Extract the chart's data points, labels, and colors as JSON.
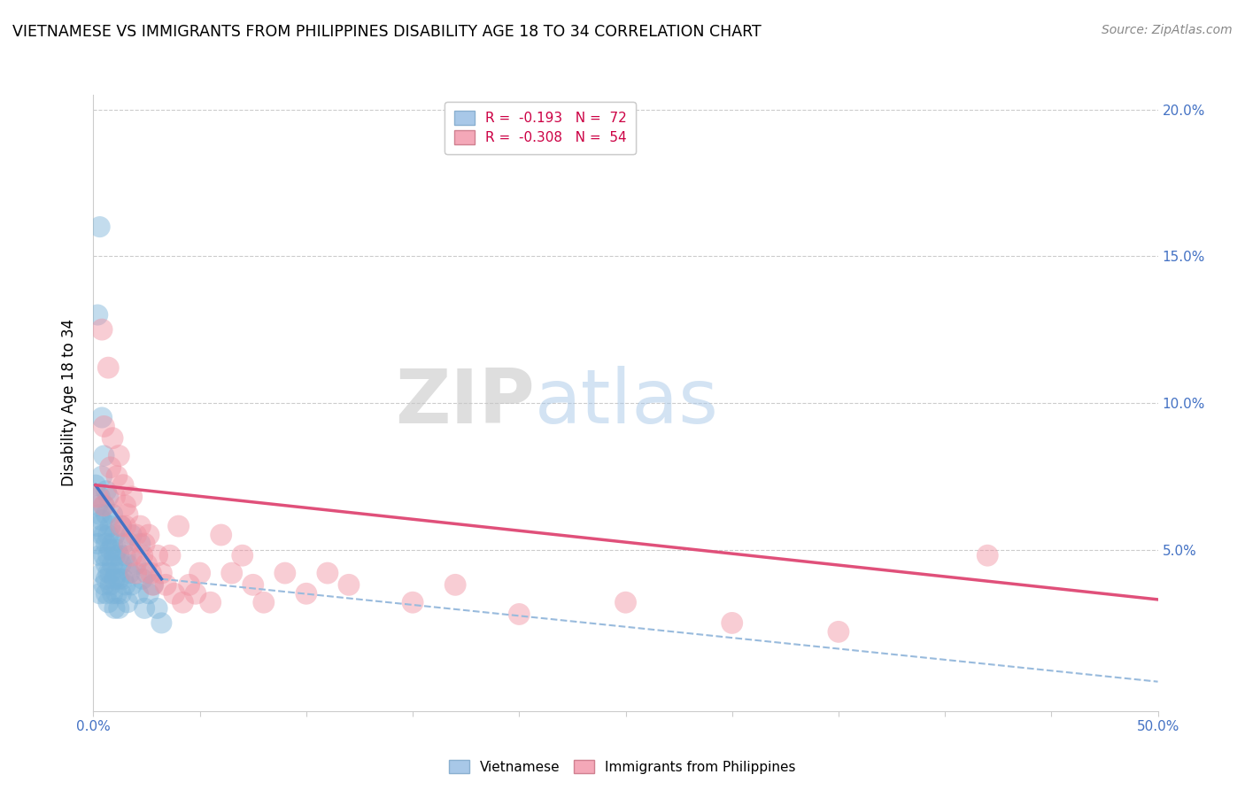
{
  "title": "VIETNAMESE VS IMMIGRANTS FROM PHILIPPINES DISABILITY AGE 18 TO 34 CORRELATION CHART",
  "source": "Source: ZipAtlas.com",
  "ylabel": "Disability Age 18 to 34",
  "xmin": 0.0,
  "xmax": 0.5,
  "ymin": -0.005,
  "ymax": 0.205,
  "yticks": [
    0.05,
    0.1,
    0.15,
    0.2
  ],
  "ytick_labels": [
    "5.0%",
    "10.0%",
    "15.0%",
    "20.0%"
  ],
  "viet_color": "#7ab3d9",
  "phil_color": "#f090a0",
  "watermark_text": "ZIPatlas",
  "viet_trend_color": "#4472c4",
  "phil_trend_color": "#e0507a",
  "dash_color": "#99bbdd",
  "viet_points": [
    [
      0.001,
      0.072
    ],
    [
      0.002,
      0.065
    ],
    [
      0.002,
      0.058
    ],
    [
      0.002,
      0.052
    ],
    [
      0.003,
      0.068
    ],
    [
      0.003,
      0.062
    ],
    [
      0.003,
      0.048
    ],
    [
      0.003,
      0.035
    ],
    [
      0.004,
      0.075
    ],
    [
      0.004,
      0.06
    ],
    [
      0.004,
      0.055
    ],
    [
      0.004,
      0.042
    ],
    [
      0.005,
      0.082
    ],
    [
      0.005,
      0.065
    ],
    [
      0.005,
      0.055
    ],
    [
      0.005,
      0.048
    ],
    [
      0.005,
      0.038
    ],
    [
      0.006,
      0.07
    ],
    [
      0.006,
      0.062
    ],
    [
      0.006,
      0.052
    ],
    [
      0.006,
      0.045
    ],
    [
      0.006,
      0.04
    ],
    [
      0.006,
      0.035
    ],
    [
      0.007,
      0.068
    ],
    [
      0.007,
      0.055
    ],
    [
      0.007,
      0.048
    ],
    [
      0.007,
      0.042
    ],
    [
      0.007,
      0.032
    ],
    [
      0.008,
      0.058
    ],
    [
      0.008,
      0.05
    ],
    [
      0.008,
      0.042
    ],
    [
      0.008,
      0.038
    ],
    [
      0.009,
      0.062
    ],
    [
      0.009,
      0.052
    ],
    [
      0.009,
      0.045
    ],
    [
      0.009,
      0.035
    ],
    [
      0.01,
      0.055
    ],
    [
      0.01,
      0.048
    ],
    [
      0.01,
      0.04
    ],
    [
      0.01,
      0.03
    ],
    [
      0.011,
      0.05
    ],
    [
      0.011,
      0.042
    ],
    [
      0.011,
      0.035
    ],
    [
      0.012,
      0.048
    ],
    [
      0.012,
      0.04
    ],
    [
      0.012,
      0.03
    ],
    [
      0.013,
      0.058
    ],
    [
      0.013,
      0.045
    ],
    [
      0.013,
      0.035
    ],
    [
      0.014,
      0.052
    ],
    [
      0.014,
      0.04
    ],
    [
      0.015,
      0.048
    ],
    [
      0.015,
      0.038
    ],
    [
      0.016,
      0.045
    ],
    [
      0.016,
      0.032
    ],
    [
      0.017,
      0.042
    ],
    [
      0.018,
      0.055
    ],
    [
      0.018,
      0.038
    ],
    [
      0.02,
      0.045
    ],
    [
      0.021,
      0.035
    ],
    [
      0.022,
      0.052
    ],
    [
      0.023,
      0.04
    ],
    [
      0.024,
      0.03
    ],
    [
      0.025,
      0.042
    ],
    [
      0.026,
      0.035
    ],
    [
      0.028,
      0.038
    ],
    [
      0.03,
      0.03
    ],
    [
      0.032,
      0.025
    ],
    [
      0.003,
      0.16
    ],
    [
      0.002,
      0.13
    ],
    [
      0.004,
      0.095
    ]
  ],
  "phil_points": [
    [
      0.002,
      0.068
    ],
    [
      0.004,
      0.125
    ],
    [
      0.005,
      0.092
    ],
    [
      0.007,
      0.112
    ],
    [
      0.008,
      0.078
    ],
    [
      0.009,
      0.088
    ],
    [
      0.01,
      0.068
    ],
    [
      0.011,
      0.075
    ],
    [
      0.012,
      0.082
    ],
    [
      0.013,
      0.058
    ],
    [
      0.014,
      0.072
    ],
    [
      0.015,
      0.065
    ],
    [
      0.015,
      0.058
    ],
    [
      0.016,
      0.062
    ],
    [
      0.017,
      0.052
    ],
    [
      0.018,
      0.068
    ],
    [
      0.018,
      0.048
    ],
    [
      0.02,
      0.055
    ],
    [
      0.02,
      0.042
    ],
    [
      0.022,
      0.058
    ],
    [
      0.023,
      0.048
    ],
    [
      0.024,
      0.052
    ],
    [
      0.025,
      0.045
    ],
    [
      0.026,
      0.055
    ],
    [
      0.027,
      0.042
    ],
    [
      0.028,
      0.038
    ],
    [
      0.03,
      0.048
    ],
    [
      0.032,
      0.042
    ],
    [
      0.034,
      0.038
    ],
    [
      0.036,
      0.048
    ],
    [
      0.038,
      0.035
    ],
    [
      0.04,
      0.058
    ],
    [
      0.042,
      0.032
    ],
    [
      0.045,
      0.038
    ],
    [
      0.048,
      0.035
    ],
    [
      0.05,
      0.042
    ],
    [
      0.055,
      0.032
    ],
    [
      0.06,
      0.055
    ],
    [
      0.065,
      0.042
    ],
    [
      0.07,
      0.048
    ],
    [
      0.075,
      0.038
    ],
    [
      0.08,
      0.032
    ],
    [
      0.09,
      0.042
    ],
    [
      0.1,
      0.035
    ],
    [
      0.11,
      0.042
    ],
    [
      0.12,
      0.038
    ],
    [
      0.15,
      0.032
    ],
    [
      0.17,
      0.038
    ],
    [
      0.2,
      0.028
    ],
    [
      0.25,
      0.032
    ],
    [
      0.3,
      0.025
    ],
    [
      0.35,
      0.022
    ],
    [
      0.42,
      0.048
    ],
    [
      0.005,
      0.065
    ]
  ],
  "viet_line_x": [
    0.001,
    0.032
  ],
  "viet_line_y": [
    0.072,
    0.04
  ],
  "phil_line_x": [
    0.001,
    0.5
  ],
  "phil_line_y": [
    0.072,
    0.033
  ],
  "dash_line_x": [
    0.032,
    0.5
  ],
  "dash_line_y": [
    0.04,
    0.005
  ]
}
